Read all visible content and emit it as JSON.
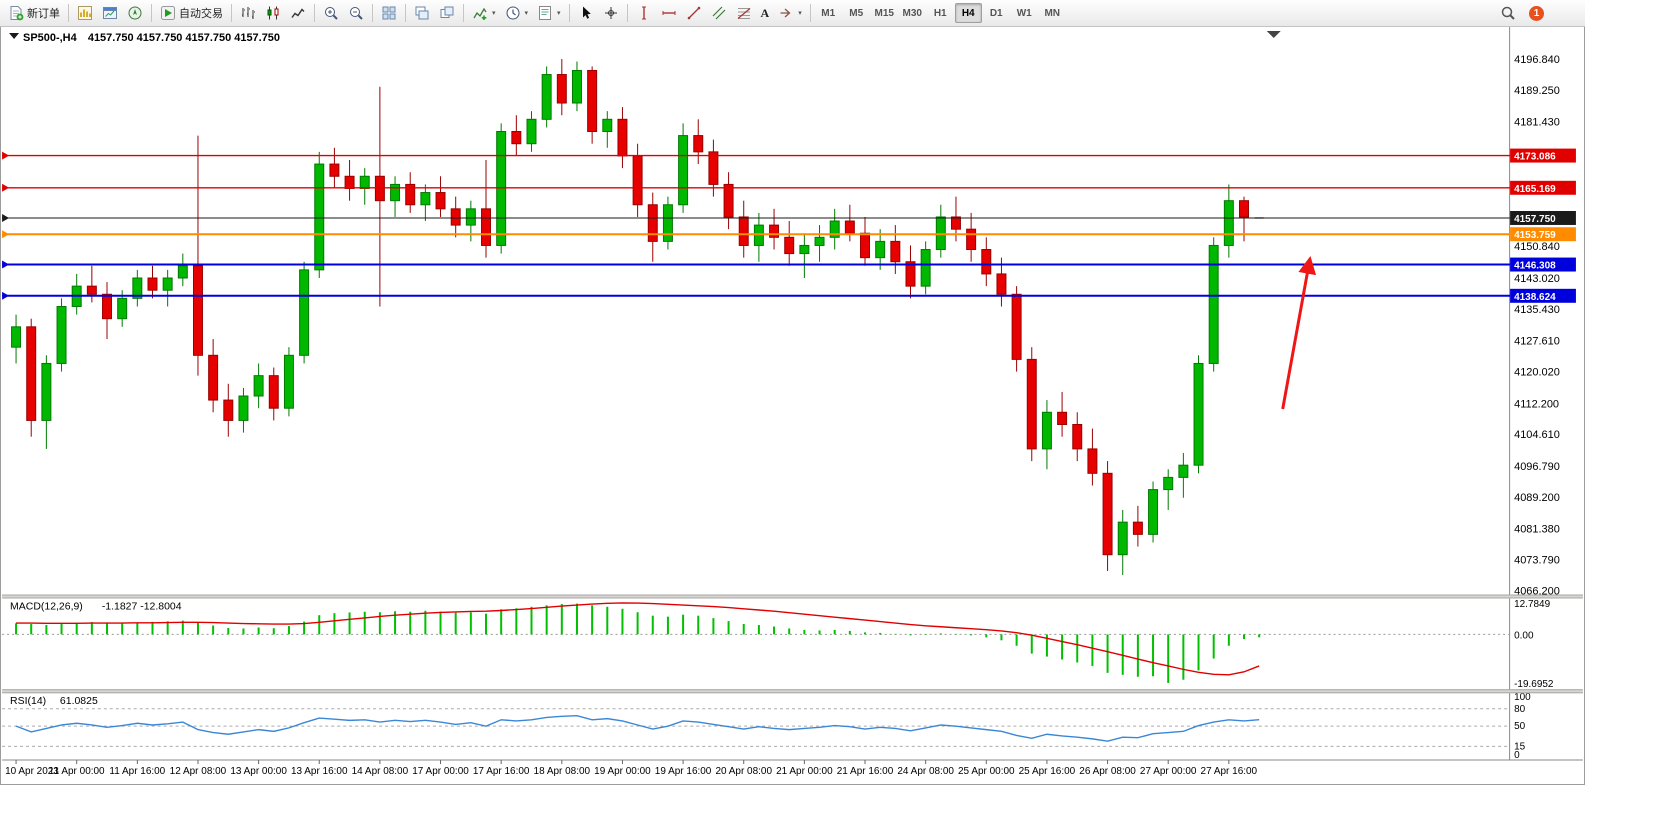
{
  "toolbar": {
    "groups": [
      [
        {
          "name": "new-order-button",
          "icon": "new-order-icon",
          "label": "新订单"
        }
      ],
      [
        {
          "name": "market-watch-button",
          "icon": "market-watch-icon"
        },
        {
          "name": "chart-window-button",
          "icon": "chart-window-icon"
        },
        {
          "name": "navigator-button",
          "icon": "navigator-icon"
        }
      ],
      [
        {
          "name": "autotrading-button",
          "icon": "autotrading-icon",
          "label": "自动交易"
        }
      ],
      [
        {
          "name": "bar-chart-button",
          "icon": "bar-chart-icon"
        },
        {
          "name": "candlestick-button",
          "icon": "candlestick-icon"
        },
        {
          "name": "line-chart-button",
          "icon": "line-chart-icon"
        }
      ],
      [
        {
          "name": "zoom-in-button",
          "icon": "zoom-in-icon"
        },
        {
          "name": "zoom-out-button",
          "icon": "zoom-out-icon"
        }
      ],
      [
        {
          "name": "tile-windows-button",
          "icon": "tile-windows-icon"
        }
      ],
      [
        {
          "name": "arrange-windows-button",
          "icon": "arrange-windows-icon"
        },
        {
          "name": "cascade-windows-button",
          "icon": "cascade-windows-icon"
        }
      ],
      [
        {
          "name": "indicators-button",
          "icon": "indicators-icon",
          "dropdown": true
        },
        {
          "name": "periods-button",
          "icon": "periods-icon",
          "dropdown": true
        },
        {
          "name": "templates-button",
          "icon": "templates-icon",
          "dropdown": true
        }
      ],
      [
        {
          "name": "cursor-button",
          "icon": "cursor-icon"
        },
        {
          "name": "crosshair-button",
          "icon": "crosshair-icon"
        }
      ],
      [
        {
          "name": "vertical-line-button",
          "icon": "vertical-line-icon"
        },
        {
          "name": "horizontal-line-button",
          "icon": "horizontal-line-icon"
        },
        {
          "name": "trendline-button",
          "icon": "trendline-icon"
        },
        {
          "name": "channel-button",
          "icon": "channel-icon"
        },
        {
          "name": "fibonacci-button",
          "icon": "fibonacci-icon"
        },
        {
          "name": "text-button",
          "icon": "text-icon",
          "glyph": "A"
        },
        {
          "name": "shapes-button",
          "icon": "shapes-icon",
          "dropdown": true
        }
      ]
    ],
    "timeframes": {
      "items": [
        "M1",
        "M5",
        "M15",
        "M30",
        "H1",
        "H4",
        "D1",
        "W1",
        "MN"
      ],
      "active": "H4"
    },
    "right_items": [
      {
        "name": "search-button",
        "icon": "search-icon"
      },
      {
        "name": "notifications-button",
        "icon": "notification-badge-icon",
        "badge": "1"
      }
    ]
  },
  "chart": {
    "header": {
      "symbol_period": "SP500-,H4",
      "ohlc_values": "4157.750 4157.750 4157.750 4157.750"
    },
    "y_axis": {
      "max": 4196.84,
      "min": 4066.2,
      "labels": [
        "4196.840",
        "4189.250",
        "4181.430",
        "4150.840",
        "4143.020",
        "4135.430",
        "4127.610",
        "4120.020",
        "4112.200",
        "4104.610",
        "4096.790",
        "4089.200",
        "4081.380",
        "4073.790",
        "4066.200"
      ]
    },
    "price_lines": [
      {
        "label": "4173.086",
        "price": 4173.086,
        "color": "#e00000",
        "thickness": 1.4,
        "kind": "resistance"
      },
      {
        "label": "4165.169",
        "price": 4165.169,
        "color": "#e00000",
        "thickness": 1.4,
        "kind": "resistance"
      },
      {
        "label": "4157.750",
        "price": 4157.75,
        "color": "#1a1a1a",
        "thickness": 1,
        "kind": "current-price"
      },
      {
        "label": "4153.759",
        "price": 4153.759,
        "color": "#ff8c00",
        "thickness": 2,
        "kind": "level"
      },
      {
        "label": "4146.308",
        "price": 4146.308,
        "color": "#0000dd",
        "thickness": 2,
        "kind": "support"
      },
      {
        "label": "4138.624",
        "price": 4138.624,
        "color": "#0000dd",
        "thickness": 2,
        "kind": "support"
      }
    ]
  },
  "chart_data": {
    "type": "candlestick",
    "symbol": "SP500-",
    "timeframe": "H4",
    "x_labels": [
      "10 Apr 2023",
      "11 Apr 00:00",
      "11 Apr 16:00",
      "12 Apr 08:00",
      "13 Apr 00:00",
      "13 Apr 16:00",
      "14 Apr 08:00",
      "17 Apr 00:00",
      "17 Apr 16:00",
      "18 Apr 08:00",
      "19 Apr 00:00",
      "19 Apr 16:00",
      "20 Apr 08:00",
      "21 Apr 00:00",
      "21 Apr 16:00",
      "24 Apr 08:00",
      "25 Apr 00:00",
      "25 Apr 16:00",
      "26 Apr 08:00",
      "27 Apr 00:00",
      "27 Apr 16:00"
    ],
    "x_label_step": 4,
    "candles": [
      [
        4126,
        4134,
        4122,
        4131
      ],
      [
        4131,
        4133,
        4104,
        4108
      ],
      [
        4108,
        4124,
        4101,
        4122
      ],
      [
        4122,
        4138,
        4120,
        4136
      ],
      [
        4136,
        4144,
        4134,
        4141
      ],
      [
        4141,
        4146,
        4137,
        4139
      ],
      [
        4139,
        4142,
        4128,
        4133
      ],
      [
        4133,
        4140,
        4131,
        4138
      ],
      [
        4138,
        4145,
        4136,
        4143
      ],
      [
        4143,
        4146,
        4138,
        4140
      ],
      [
        4140,
        4145,
        4136,
        4143
      ],
      [
        4143,
        4149,
        4141,
        4146
      ],
      [
        4146,
        4178,
        4119,
        4124
      ],
      [
        4124,
        4128,
        4110,
        4113
      ],
      [
        4113,
        4117,
        4104,
        4108
      ],
      [
        4108,
        4116,
        4105,
        4114
      ],
      [
        4114,
        4122,
        4111,
        4119
      ],
      [
        4119,
        4121,
        4108,
        4111
      ],
      [
        4111,
        4126,
        4109,
        4124
      ],
      [
        4124,
        4147,
        4122,
        4145
      ],
      [
        4145,
        4174,
        4143,
        4171
      ],
      [
        4171,
        4175,
        4165,
        4168
      ],
      [
        4168,
        4172,
        4162,
        4165
      ],
      [
        4165,
        4170,
        4161,
        4168
      ],
      [
        4168,
        4190,
        4136,
        4162
      ],
      [
        4162,
        4168,
        4158,
        4166
      ],
      [
        4166,
        4169,
        4159,
        4161
      ],
      [
        4161,
        4166,
        4157,
        4164
      ],
      [
        4164,
        4168,
        4158,
        4160
      ],
      [
        4160,
        4163,
        4153,
        4156
      ],
      [
        4156,
        4162,
        4152,
        4160
      ],
      [
        4160,
        4172,
        4148,
        4151
      ],
      [
        4151,
        4181,
        4149,
        4179
      ],
      [
        4179,
        4183,
        4173,
        4176
      ],
      [
        4176,
        4184,
        4174,
        4182
      ],
      [
        4182,
        4195,
        4180,
        4193
      ],
      [
        4193,
        4196.8,
        4183,
        4186
      ],
      [
        4186,
        4196.2,
        4184,
        4194
      ],
      [
        4194,
        4195,
        4176,
        4179
      ],
      [
        4179,
        4184,
        4175,
        4182
      ],
      [
        4182,
        4185,
        4170,
        4173
      ],
      [
        4173,
        4176,
        4158,
        4161
      ],
      [
        4161,
        4164,
        4147,
        4152
      ],
      [
        4152,
        4163,
        4150,
        4161
      ],
      [
        4161,
        4181,
        4159,
        4178
      ],
      [
        4178,
        4182,
        4171,
        4174
      ],
      [
        4174,
        4177,
        4163,
        4166
      ],
      [
        4166,
        4169,
        4155,
        4158
      ],
      [
        4158,
        4162,
        4148,
        4151
      ],
      [
        4151,
        4159,
        4147,
        4156
      ],
      [
        4156,
        4160,
        4150,
        4153
      ],
      [
        4153,
        4157,
        4146,
        4149
      ],
      [
        4149,
        4154,
        4143,
        4151
      ],
      [
        4151,
        4156,
        4147,
        4153
      ],
      [
        4153,
        4160,
        4150,
        4157
      ],
      [
        4157,
        4161,
        4152,
        4154
      ],
      [
        4154,
        4158,
        4146,
        4148
      ],
      [
        4148,
        4155,
        4145,
        4152
      ],
      [
        4152,
        4156,
        4144,
        4147
      ],
      [
        4147,
        4151,
        4138,
        4141
      ],
      [
        4141,
        4152,
        4139,
        4150
      ],
      [
        4150,
        4161,
        4148,
        4158
      ],
      [
        4158,
        4163,
        4152,
        4155
      ],
      [
        4155,
        4159,
        4147,
        4150
      ],
      [
        4150,
        4153,
        4141,
        4144
      ],
      [
        4144,
        4148,
        4136,
        4139
      ],
      [
        4139,
        4141,
        4120,
        4123
      ],
      [
        4123,
        4126,
        4098,
        4101
      ],
      [
        4101,
        4113,
        4096,
        4110
      ],
      [
        4110,
        4115,
        4104,
        4107
      ],
      [
        4107,
        4110,
        4098,
        4101
      ],
      [
        4101,
        4106,
        4092,
        4095
      ],
      [
        4095,
        4098,
        4071,
        4075
      ],
      [
        4075,
        4086,
        4070,
        4083
      ],
      [
        4083,
        4087,
        4077,
        4080
      ],
      [
        4080,
        4093,
        4078,
        4091
      ],
      [
        4091,
        4096,
        4086,
        4094
      ],
      [
        4094,
        4100,
        4089,
        4097
      ],
      [
        4097,
        4124,
        4095,
        4122
      ],
      [
        4122,
        4153,
        4120,
        4151
      ],
      [
        4151,
        4166,
        4148,
        4162
      ],
      [
        4162,
        4163,
        4152,
        4158
      ],
      [
        4157.75,
        4157.75,
        4157.75,
        4157.75
      ]
    ],
    "indicators": {
      "macd": {
        "label": "MACD(12,26,9)",
        "values_label": "-1.1827 -12.8004",
        "scale": [
          {
            "label": "12.7849",
            "value": 12.7849
          },
          {
            "label": "0.00",
            "value": 0
          },
          {
            "label": "-19.6952",
            "value": -19.6952
          }
        ],
        "histogram": [
          4.5,
          4.2,
          3.8,
          4.3,
          4.7,
          5.0,
          4.6,
          4.4,
          4.8,
          5.1,
          5.3,
          5.6,
          4.8,
          3.6,
          2.6,
          2.4,
          2.8,
          2.5,
          3.4,
          5.2,
          7.8,
          8.6,
          8.9,
          9.2,
          9.0,
          9.4,
          9.2,
          9.6,
          9.3,
          8.8,
          9.0,
          8.4,
          10.2,
          10.6,
          11.2,
          11.8,
          12.3,
          12.5,
          11.8,
          11.2,
          10.4,
          9.0,
          7.6,
          7.2,
          8.0,
          7.6,
          6.6,
          5.4,
          4.2,
          3.8,
          3.2,
          2.4,
          1.8,
          1.6,
          1.8,
          1.4,
          0.8,
          0.6,
          0.2,
          -0.4,
          -0.2,
          0.4,
          0.2,
          -0.4,
          -1.2,
          -2.4,
          -4.6,
          -7.8,
          -9.0,
          -10.2,
          -11.4,
          -12.8,
          -15.6,
          -16.4,
          -17.2,
          -17.0,
          -19.7,
          -18.4,
          -14.6,
          -9.8,
          -4.6,
          -1.9,
          -1.18
        ],
        "signal": [
          4.6,
          4.6,
          4.5,
          4.5,
          4.5,
          4.6,
          4.6,
          4.6,
          4.7,
          4.7,
          4.8,
          4.9,
          4.9,
          4.8,
          4.6,
          4.4,
          4.3,
          4.2,
          4.2,
          4.4,
          4.9,
          5.5,
          6.1,
          6.7,
          7.3,
          7.8,
          8.2,
          8.6,
          8.9,
          9.1,
          9.3,
          9.4,
          9.7,
          10.1,
          10.5,
          11.0,
          11.5,
          11.9,
          12.3,
          12.6,
          12.78,
          12.7,
          12.5,
          12.2,
          11.9,
          11.6,
          11.3,
          10.9,
          10.4,
          9.9,
          9.4,
          8.8,
          8.2,
          7.6,
          7.0,
          6.4,
          5.8,
          5.2,
          4.6,
          4.0,
          3.5,
          3.1,
          2.7,
          2.3,
          1.9,
          1.4,
          0.7,
          -0.3,
          -1.6,
          -2.9,
          -4.2,
          -5.6,
          -7.0,
          -8.5,
          -10.0,
          -11.5,
          -12.8,
          -14.2,
          -15.4,
          -16.2,
          -16.4,
          -15.2,
          -12.8
        ]
      },
      "rsi": {
        "label": "RSI(14)",
        "value_label": "61.0825",
        "scale": [
          {
            "label": "100",
            "value": 100
          },
          {
            "label": "80",
            "value": 80
          },
          {
            "label": "50",
            "value": 50
          },
          {
            "label": "15",
            "value": 15
          },
          {
            "label": "0",
            "value": 0
          }
        ],
        "levels": [
          80,
          50,
          15
        ],
        "values": [
          50,
          40,
          46,
          52,
          55,
          52,
          48,
          51,
          55,
          52,
          54,
          57,
          44,
          39,
          36,
          40,
          44,
          41,
          47,
          56,
          64,
          62,
          60,
          61,
          57,
          60,
          58,
          60,
          57,
          53,
          56,
          50,
          61,
          59,
          61,
          65,
          67,
          68,
          61,
          63,
          59,
          52,
          45,
          50,
          59,
          57,
          53,
          49,
          45,
          49,
          46,
          44,
          46,
          48,
          51,
          49,
          45,
          48,
          46,
          42,
          47,
          52,
          50,
          47,
          44,
          41,
          34,
          29,
          36,
          33,
          31,
          28,
          24,
          31,
          30,
          37,
          39,
          41,
          51,
          57,
          61,
          59,
          61.08
        ]
      }
    },
    "annotation_arrow": {
      "shape": "up-arrow",
      "color": "#f01616"
    }
  },
  "colors": {
    "bull_fill": "#00b800",
    "bull_stroke": "#007a00",
    "bear_fill": "#e60000",
    "bear_stroke": "#9a0000",
    "macd_histogram": "#00c000",
    "macd_signal": "#e00000",
    "rsi_line": "#3a87d8",
    "axis_text": "#000000",
    "badge_background": "#e8501e"
  }
}
